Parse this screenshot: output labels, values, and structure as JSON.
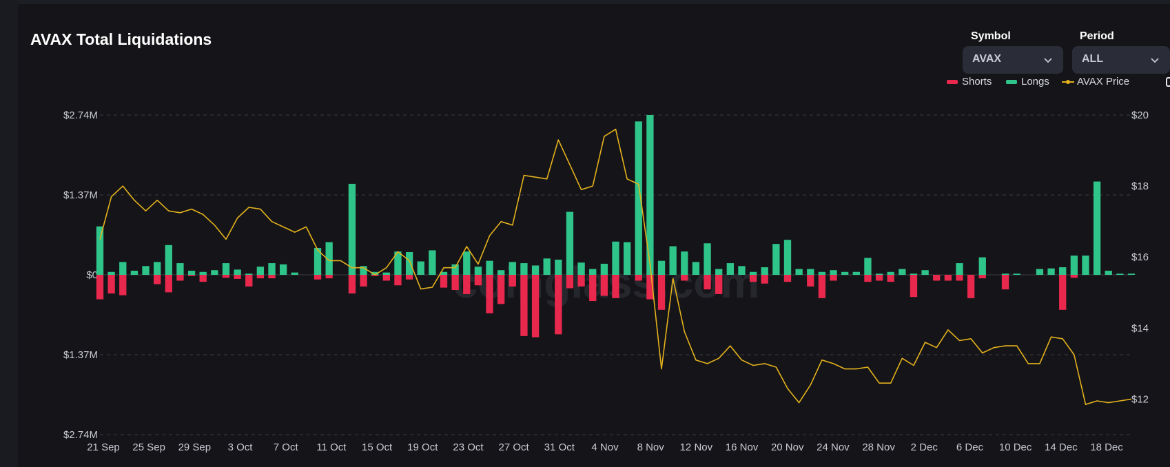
{
  "header": {
    "title": "AVAX Total Liquidations"
  },
  "controls": {
    "symbol": {
      "label": "Symbol",
      "value": "AVAX"
    },
    "period": {
      "label": "Period",
      "value": "ALL"
    }
  },
  "colors": {
    "shorts": "#e8284d",
    "longs": "#2fc48a",
    "price": "#e5b21c",
    "grid": "#3a3c44",
    "text": "#c8cad2"
  },
  "chart_data": {
    "type": "bar",
    "title": "AVAX Total Liquidations",
    "watermark": "coinglass.com",
    "legend": {
      "position": "top-right",
      "items": [
        "Shorts",
        "Longs",
        "AVAX Price"
      ]
    },
    "y_left": {
      "ticks": [
        "$2.74M",
        "$1.37M",
        "$0",
        "$1.37M",
        "$2.74M"
      ],
      "range_millions": [
        -2.74,
        2.74
      ]
    },
    "y_right": {
      "ticks": [
        "$20",
        "$18",
        "$16",
        "$14",
        "$12"
      ],
      "range": [
        11,
        20
      ]
    },
    "x_tick_labels": [
      "21 Sep",
      "25 Sep",
      "29 Sep",
      "3 Oct",
      "7 Oct",
      "11 Oct",
      "15 Oct",
      "19 Oct",
      "23 Oct",
      "27 Oct",
      "31 Oct",
      "4 Nov",
      "8 Nov",
      "12 Nov",
      "16 Nov",
      "20 Nov",
      "24 Nov",
      "28 Nov",
      "2 Dec",
      "6 Dec",
      "10 Dec",
      "14 Dec",
      "18 Dec"
    ],
    "x_start": "21 Sep",
    "x_end": "20 Dec",
    "series": [
      {
        "name": "Longs",
        "unit": "$M",
        "values": [
          0.83,
          0.05,
          0.22,
          0.07,
          0.15,
          0.22,
          0.51,
          0.2,
          0.07,
          0.05,
          0.08,
          0.2,
          0.09,
          0.02,
          0.14,
          0.2,
          0.18,
          0.04,
          0.0,
          0.46,
          0.56,
          0.0,
          1.56,
          0.15,
          0.05,
          0.04,
          0.4,
          0.39,
          0.23,
          0.42,
          0.05,
          0.18,
          0.4,
          0.14,
          0.24,
          0.08,
          0.22,
          0.2,
          0.16,
          0.28,
          0.26,
          1.08,
          0.21,
          0.1,
          0.19,
          0.57,
          0.56,
          2.63,
          2.74,
          0.24,
          0.49,
          0.4,
          0.22,
          0.54,
          0.1,
          0.2,
          0.15,
          0.05,
          0.13,
          0.53,
          0.6,
          0.1,
          0.1,
          0.05,
          0.08,
          0.05,
          0.05,
          0.29,
          0.02,
          0.05,
          0.1,
          0.02,
          0.08,
          0.0,
          0.0,
          0.2,
          0.0,
          0.3,
          0.0,
          0.02,
          0.02,
          0.0,
          0.1,
          0.11,
          0.13,
          0.33,
          0.33,
          1.6,
          0.07,
          0.02,
          0.02
        ]
      },
      {
        "name": "Shorts",
        "unit": "$M",
        "values": [
          0.42,
          0.32,
          0.35,
          0.0,
          0.0,
          0.16,
          0.3,
          0.1,
          0.02,
          0.12,
          0.0,
          0.05,
          0.07,
          0.2,
          0.06,
          0.06,
          0.0,
          0.0,
          0.0,
          0.08,
          0.06,
          0.0,
          0.32,
          0.2,
          0.02,
          0.1,
          0.18,
          0.08,
          0.0,
          0.0,
          0.22,
          0.26,
          0.33,
          0.18,
          0.66,
          0.5,
          0.2,
          1.05,
          1.07,
          0.0,
          1.02,
          0.23,
          0.2,
          0.45,
          0.36,
          0.4,
          0.0,
          0.1,
          0.42,
          0.6,
          0.0,
          0.1,
          0.0,
          0.25,
          0.33,
          0.0,
          0.0,
          0.12,
          0.15,
          0.0,
          0.12,
          0.0,
          0.2,
          0.4,
          0.1,
          0.0,
          0.0,
          0.12,
          0.1,
          0.12,
          0.0,
          0.38,
          0.0,
          0.1,
          0.1,
          0.1,
          0.4,
          0.06,
          0.0,
          0.25,
          0.0,
          0.0,
          0.0,
          0.0,
          0.6,
          0.05,
          0.0,
          0.0,
          0.0,
          0.0,
          0.0
        ]
      },
      {
        "name": "AVAX Price",
        "unit": "$",
        "values": [
          16.5,
          17.7,
          18.0,
          17.6,
          17.3,
          17.6,
          17.3,
          17.25,
          17.35,
          17.2,
          16.9,
          16.5,
          17.1,
          17.4,
          17.35,
          17.0,
          16.85,
          16.7,
          16.85,
          16.2,
          15.9,
          15.9,
          15.7,
          15.7,
          15.5,
          15.7,
          16.15,
          15.9,
          15.1,
          15.15,
          15.7,
          15.7,
          16.3,
          15.8,
          16.6,
          17.0,
          16.9,
          18.3,
          18.25,
          18.2,
          19.3,
          18.6,
          17.9,
          18.0,
          19.4,
          19.6,
          18.2,
          18.05,
          15.8,
          12.85,
          15.4,
          13.9,
          13.1,
          13.0,
          13.15,
          13.5,
          13.1,
          12.95,
          13.0,
          12.9,
          12.3,
          11.9,
          12.4,
          13.1,
          13.0,
          12.85,
          12.85,
          12.9,
          12.45,
          12.45,
          13.15,
          12.95,
          13.6,
          13.45,
          13.95,
          13.65,
          13.7,
          13.3,
          13.45,
          13.5,
          13.5,
          13.0,
          13.0,
          13.75,
          13.7,
          13.25,
          11.85,
          11.95,
          11.9,
          11.95,
          12.0
        ]
      }
    ]
  }
}
